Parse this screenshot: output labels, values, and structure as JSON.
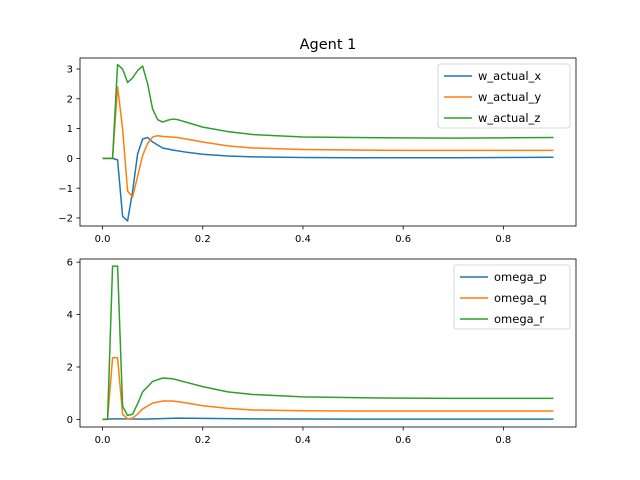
{
  "figure": {
    "title": "Agent 1"
  },
  "chart_data": [
    {
      "type": "line",
      "title": "Agent 1",
      "xlabel": "",
      "ylabel": "",
      "xlim": [
        -0.045,
        0.945
      ],
      "ylim": [
        -2.27,
        3.37
      ],
      "xticks": [
        0.0,
        0.2,
        0.4,
        0.6,
        0.8
      ],
      "xtick_labels": [
        "0.0",
        "0.2",
        "0.4",
        "0.6",
        "0.8"
      ],
      "yticks": [
        -2,
        -1,
        0,
        1,
        2,
        3
      ],
      "ytick_labels": [
        "−2",
        "−1",
        "0",
        "1",
        "2",
        "3"
      ],
      "grid": false,
      "legend_position": "upper-right",
      "series": [
        {
          "name": "w_actual_x",
          "color": "#1f77b4",
          "x": [
            0,
            0.01,
            0.02,
            0.03,
            0.04,
            0.05,
            0.06,
            0.07,
            0.08,
            0.09,
            0.1,
            0.12,
            0.14,
            0.17,
            0.2,
            0.25,
            0.3,
            0.4,
            0.5,
            0.6,
            0.7,
            0.8,
            0.9
          ],
          "y": [
            0,
            0,
            0,
            -0.05,
            -1.95,
            -2.1,
            -1.1,
            0.15,
            0.65,
            0.7,
            0.55,
            0.35,
            0.28,
            0.2,
            0.14,
            0.08,
            0.05,
            0.03,
            0.02,
            0.02,
            0.02,
            0.03,
            0.04
          ]
        },
        {
          "name": "w_actual_y",
          "color": "#ff7f0e",
          "x": [
            0,
            0.01,
            0.02,
            0.03,
            0.04,
            0.05,
            0.06,
            0.07,
            0.08,
            0.09,
            0.1,
            0.11,
            0.12,
            0.15,
            0.2,
            0.25,
            0.3,
            0.4,
            0.5,
            0.6,
            0.7,
            0.8,
            0.9
          ],
          "y": [
            0,
            0,
            0,
            2.4,
            1.0,
            -1.1,
            -1.3,
            -0.6,
            0.1,
            0.5,
            0.72,
            0.76,
            0.74,
            0.7,
            0.55,
            0.42,
            0.35,
            0.3,
            0.28,
            0.27,
            0.27,
            0.27,
            0.27
          ]
        },
        {
          "name": "w_actual_z",
          "color": "#2ca02c",
          "x": [
            0,
            0.01,
            0.02,
            0.03,
            0.04,
            0.05,
            0.06,
            0.07,
            0.08,
            0.09,
            0.1,
            0.11,
            0.12,
            0.13,
            0.14,
            0.15,
            0.17,
            0.2,
            0.25,
            0.3,
            0.4,
            0.5,
            0.6,
            0.7,
            0.8,
            0.9
          ],
          "y": [
            0,
            0,
            0,
            3.15,
            3.0,
            2.55,
            2.7,
            2.95,
            3.1,
            2.5,
            1.65,
            1.3,
            1.22,
            1.28,
            1.32,
            1.3,
            1.2,
            1.05,
            0.9,
            0.8,
            0.72,
            0.7,
            0.69,
            0.68,
            0.69,
            0.7
          ]
        }
      ]
    },
    {
      "type": "line",
      "title": "",
      "xlabel": "",
      "ylabel": "",
      "xlim": [
        -0.045,
        0.945
      ],
      "ylim": [
        -0.29,
        6.12
      ],
      "xticks": [
        0.0,
        0.2,
        0.4,
        0.6,
        0.8
      ],
      "xtick_labels": [
        "0.0",
        "0.2",
        "0.4",
        "0.6",
        "0.8"
      ],
      "yticks": [
        0,
        2,
        4,
        6
      ],
      "ytick_labels": [
        "0",
        "2",
        "4",
        "6"
      ],
      "grid": false,
      "legend_position": "upper-right",
      "series": [
        {
          "name": "omega_p",
          "color": "#1f77b4",
          "x": [
            0,
            0.02,
            0.05,
            0.08,
            0.1,
            0.15,
            0.2,
            0.3,
            0.5,
            0.9
          ],
          "y": [
            0,
            0.02,
            0.02,
            0.01,
            0.02,
            0.05,
            0.04,
            0.02,
            0.01,
            0.01
          ]
        },
        {
          "name": "omega_q",
          "color": "#ff7f0e",
          "x": [
            0,
            0.01,
            0.02,
            0.03,
            0.04,
            0.05,
            0.06,
            0.07,
            0.08,
            0.1,
            0.12,
            0.14,
            0.17,
            0.2,
            0.25,
            0.3,
            0.4,
            0.5,
            0.6,
            0.7,
            0.8,
            0.9
          ],
          "y": [
            0,
            0,
            2.35,
            2.35,
            0.2,
            0.02,
            0.05,
            0.2,
            0.4,
            0.62,
            0.7,
            0.7,
            0.62,
            0.52,
            0.42,
            0.36,
            0.33,
            0.32,
            0.32,
            0.32,
            0.32,
            0.32
          ]
        },
        {
          "name": "omega_r",
          "color": "#2ca02c",
          "x": [
            0,
            0.01,
            0.02,
            0.03,
            0.04,
            0.05,
            0.06,
            0.07,
            0.08,
            0.1,
            0.12,
            0.14,
            0.17,
            0.2,
            0.25,
            0.3,
            0.4,
            0.5,
            0.6,
            0.7,
            0.8,
            0.9
          ],
          "y": [
            0,
            0,
            5.85,
            5.85,
            0.5,
            0.15,
            0.2,
            0.6,
            1.05,
            1.45,
            1.58,
            1.55,
            1.4,
            1.25,
            1.05,
            0.95,
            0.86,
            0.83,
            0.81,
            0.8,
            0.8,
            0.8
          ]
        }
      ]
    }
  ]
}
